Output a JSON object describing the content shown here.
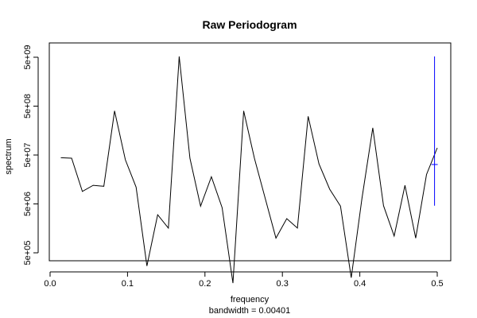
{
  "chart_data": {
    "type": "line",
    "title": "Raw Periodogram",
    "xlabel": "frequency",
    "ylabel": "spectrum",
    "subtitle": "bandwidth = 0.00401",
    "log_y": true,
    "xlim": [
      0.0,
      0.5
    ],
    "ylim": [
      500000.0,
      5000000000.0
    ],
    "x_ticks": [
      0.0,
      0.1,
      0.2,
      0.3,
      0.4,
      0.5
    ],
    "x_tick_labels": [
      "0.0",
      "0.1",
      "0.2",
      "0.3",
      "0.4",
      "0.5"
    ],
    "y_ticks": [
      500000.0,
      5000000.0,
      50000000.0,
      500000000.0,
      5000000000.0
    ],
    "y_tick_labels": [
      "5e+05",
      "5e+06",
      "5e+07",
      "5e+08",
      "5e+09"
    ],
    "grid": false,
    "line_color": "#000000",
    "ci_color": "#0000ff",
    "series": [
      {
        "x": [
          0.0139,
          0.0278,
          0.0417,
          0.0556,
          0.0694,
          0.0833,
          0.0972,
          0.1111,
          0.125,
          0.1389,
          0.1528,
          0.1667,
          0.1806,
          0.1944,
          0.2083,
          0.2222,
          0.2361,
          0.25,
          0.2639,
          0.2778,
          0.2917,
          0.3056,
          0.3194,
          0.3333,
          0.3472,
          0.3611,
          0.375,
          0.3889,
          0.4028,
          0.4167,
          0.4306,
          0.4444,
          0.4583,
          0.4722,
          0.4861,
          0.5
        ],
        "values": [
          44000000,
          43000000,
          9000000,
          12000000,
          11500000,
          400000000,
          40000000,
          11000000,
          270000,
          3000000,
          1600000,
          5200000000,
          43000000,
          4500000,
          18000000,
          4200000,
          120000,
          400000000,
          43000000,
          6500000,
          1000000,
          2500000,
          1600000,
          310000000,
          33000000,
          10000000,
          4500000,
          155000,
          6500000,
          180000000,
          4600000,
          1100000,
          12000000,
          1000000,
          20000000,
          70000000
        ]
      }
    ],
    "ci_bar": {
      "x": 0.4965,
      "center": 32000000,
      "lower": 4600000,
      "upper": 5200000000
    }
  }
}
